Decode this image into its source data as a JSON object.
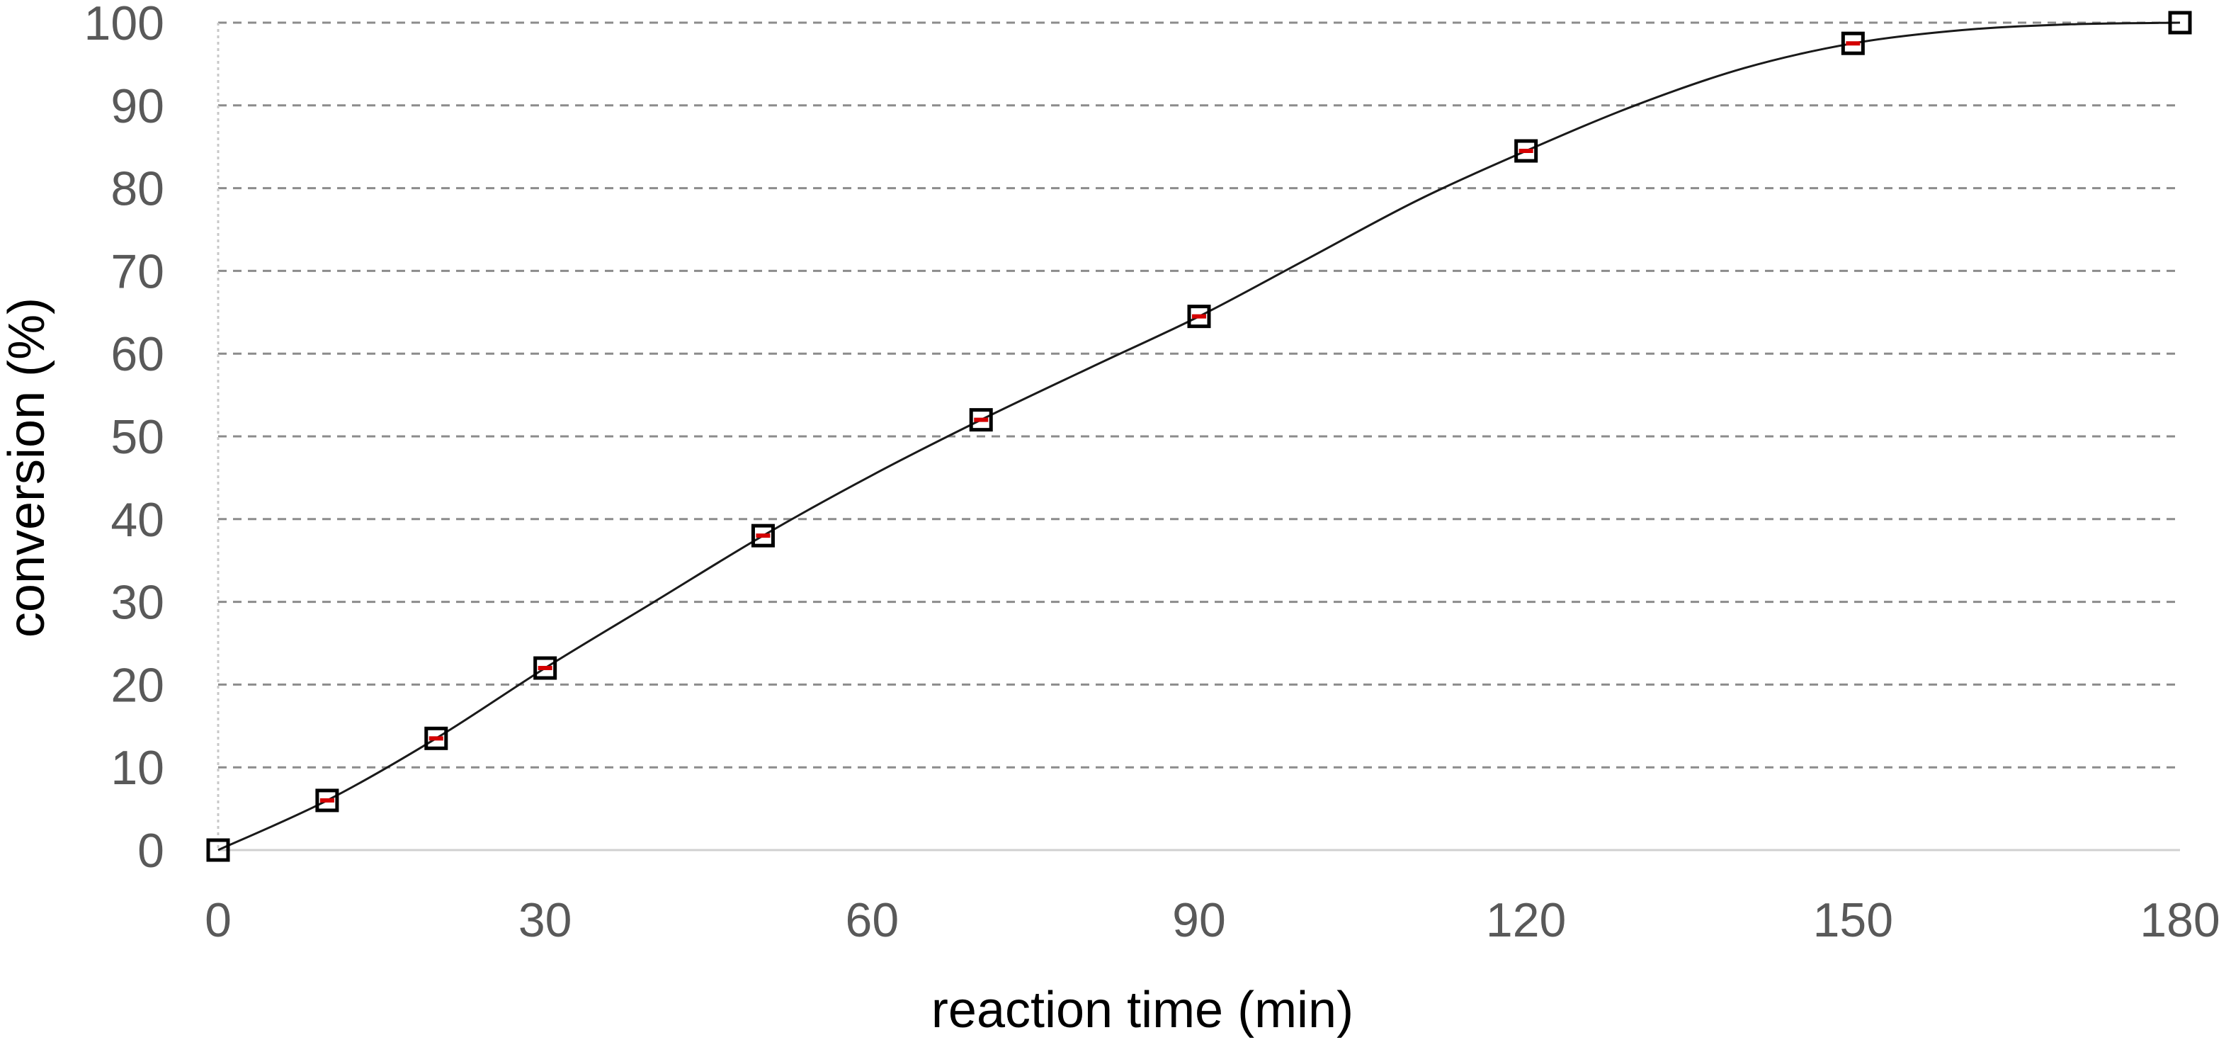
{
  "chart_data": {
    "type": "scatter",
    "xlabel": "reaction time (min)",
    "ylabel": "conversion (%)",
    "xlim": [
      0,
      180
    ],
    "ylim": [
      0,
      100
    ],
    "x_ticks": [
      "0",
      "30",
      "60",
      "90",
      "120",
      "150",
      "180"
    ],
    "y_ticks": [
      "0",
      "10",
      "20",
      "30",
      "40",
      "50",
      "60",
      "70",
      "80",
      "90",
      "100"
    ],
    "grid": "horizontal dashed",
    "legend": "none",
    "series": [
      {
        "marker": "open-square",
        "error_bar_color": "#d40000",
        "x": [
          0,
          10,
          20,
          30,
          50,
          70,
          90,
          120,
          150,
          180
        ],
        "y": [
          0,
          6,
          13.5,
          22,
          38,
          52,
          64.5,
          84.5,
          97.5,
          100
        ]
      }
    ],
    "fit_curve": {
      "style": "smooth solid line",
      "color": "#1a1a1a",
      "x": [
        0,
        10,
        20,
        30,
        40,
        50,
        60,
        70,
        80,
        90,
        100,
        110,
        120,
        130,
        140,
        150,
        160,
        170,
        180
      ],
      "y": [
        0,
        6,
        13.5,
        22,
        30,
        38,
        45.3,
        52,
        58.3,
        64.5,
        71.5,
        78.5,
        84.5,
        90,
        94.5,
        97.5,
        99.1,
        99.8,
        100
      ]
    }
  }
}
